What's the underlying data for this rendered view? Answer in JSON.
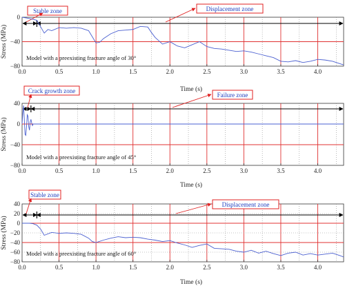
{
  "chart_data": [
    {
      "type": "line",
      "xlabel": "Time (s)",
      "ylabel": "Stress (MPa)",
      "xlim": [
        0,
        4.35
      ],
      "ylim": [
        -80,
        0
      ],
      "xticks": [
        "0.0",
        "0.5",
        "1.0",
        "1.5",
        "2.0",
        "2.5",
        "3.0",
        "3.5",
        "4.0"
      ],
      "yticks": [
        "0",
        "−40",
        "−80"
      ],
      "annotation": "Model with a preexisting fracture angle of 30°",
      "zones": [
        {
          "label": "Stable zone",
          "start": 0.0,
          "end": 0.2
        },
        {
          "label": "Displacement zone",
          "start": 0.2,
          "end": 4.35
        }
      ],
      "series": [
        {
          "x": [
            0.0,
            0.1,
            0.2,
            0.3,
            0.35,
            0.4,
            0.5,
            0.6,
            0.7,
            0.8,
            0.9,
            0.95,
            1.0,
            1.05,
            1.1,
            1.2,
            1.3,
            1.4,
            1.5,
            1.6,
            1.7,
            1.75,
            1.8,
            1.9,
            2.0,
            2.1,
            2.2,
            2.3,
            2.4,
            2.5,
            2.6,
            2.7,
            2.8,
            2.9,
            3.0,
            3.1,
            3.2,
            3.3,
            3.4,
            3.5,
            3.6,
            3.7,
            3.8,
            3.9,
            4.0,
            4.1,
            4.2,
            4.3,
            4.35
          ],
          "values": [
            0,
            -2,
            -5,
            -26,
            -20,
            -22,
            -17,
            -18,
            -17,
            -18,
            -22,
            -32,
            -42,
            -41,
            -35,
            -27,
            -22,
            -21,
            -20,
            -15,
            -16,
            -25,
            -33,
            -44,
            -40,
            -47,
            -50,
            -45,
            -40,
            -48,
            -51,
            -52,
            -54,
            -56,
            -55,
            -57,
            -60,
            -63,
            -66,
            -72,
            -73,
            -71,
            -74,
            -72,
            -69,
            -70,
            -72,
            -76,
            -78
          ]
        }
      ]
    },
    {
      "type": "line",
      "xlabel": "Time (s)",
      "ylabel": "Stress (MPa)",
      "xlim": [
        0,
        4.35
      ],
      "ylim": [
        -80,
        40
      ],
      "xticks": [
        "0.0",
        "0.5",
        "1.0",
        "1.5",
        "2.0",
        "2.5",
        "3.0",
        "3.5",
        "4.0"
      ],
      "yticks": [
        "40",
        "0",
        "−40",
        "−80"
      ],
      "annotation": "Model with a preexisting fracture angle of 45°",
      "zones": [
        {
          "label": "Crack growth zone",
          "start": 0.0,
          "end": 0.12
        },
        {
          "label": "Failure zone",
          "start": 0.12,
          "end": 4.35
        }
      ],
      "series": [
        {
          "x": [
            0.0,
            0.01,
            0.02,
            0.03,
            0.04,
            0.05,
            0.06,
            0.07,
            0.08,
            0.09,
            0.1,
            0.11,
            0.12,
            0.13,
            0.14,
            0.15,
            0.2,
            4.35
          ],
          "values": [
            0,
            22,
            36,
            10,
            -20,
            -22,
            -5,
            18,
            15,
            -5,
            -12,
            4,
            9,
            2,
            -3,
            0,
            0,
            0
          ]
        }
      ]
    },
    {
      "type": "line",
      "xlabel": "Time (s)",
      "ylabel": "Stress (MPa)",
      "xlim": [
        0,
        4.35
      ],
      "ylim": [
        -80,
        40
      ],
      "xticks": [
        "0.0",
        "0.5",
        "1.0",
        "1.5",
        "2.0",
        "2.5",
        "3.0",
        "3.5",
        "4.0"
      ],
      "yticks": [
        "40",
        "20",
        "0",
        "−20",
        "−40",
        "−60",
        "−80"
      ],
      "annotation": "Model with a preexisting fracture angle of 60°",
      "zones": [
        {
          "label": "Stable zone",
          "start": 0.0,
          "end": 0.2
        },
        {
          "label": "Displacement zone",
          "start": 0.2,
          "end": 4.35
        }
      ],
      "series": [
        {
          "x": [
            0.0,
            0.1,
            0.15,
            0.2,
            0.25,
            0.3,
            0.4,
            0.5,
            0.6,
            0.7,
            0.8,
            0.9,
            0.95,
            1.0,
            1.1,
            1.2,
            1.3,
            1.4,
            1.5,
            1.6,
            1.7,
            1.8,
            1.9,
            2.0,
            2.1,
            2.2,
            2.3,
            2.4,
            2.5,
            2.6,
            2.7,
            2.8,
            2.9,
            3.0,
            3.1,
            3.2,
            3.3,
            3.4,
            3.5,
            3.6,
            3.7,
            3.8,
            3.9,
            4.0,
            4.1,
            4.2,
            4.3,
            4.35
          ],
          "values": [
            0,
            0,
            -1,
            -4,
            -12,
            -25,
            -19,
            -21,
            -20,
            -21,
            -23,
            -31,
            -38,
            -40,
            -35,
            -31,
            -28,
            -30,
            -29,
            -30,
            -33,
            -35,
            -38,
            -36,
            -41,
            -45,
            -50,
            -46,
            -43,
            -52,
            -53,
            -54,
            -58,
            -60,
            -56,
            -62,
            -58,
            -63,
            -67,
            -62,
            -60,
            -66,
            -63,
            -66,
            -64,
            -62,
            -67,
            -70
          ]
        }
      ]
    }
  ]
}
